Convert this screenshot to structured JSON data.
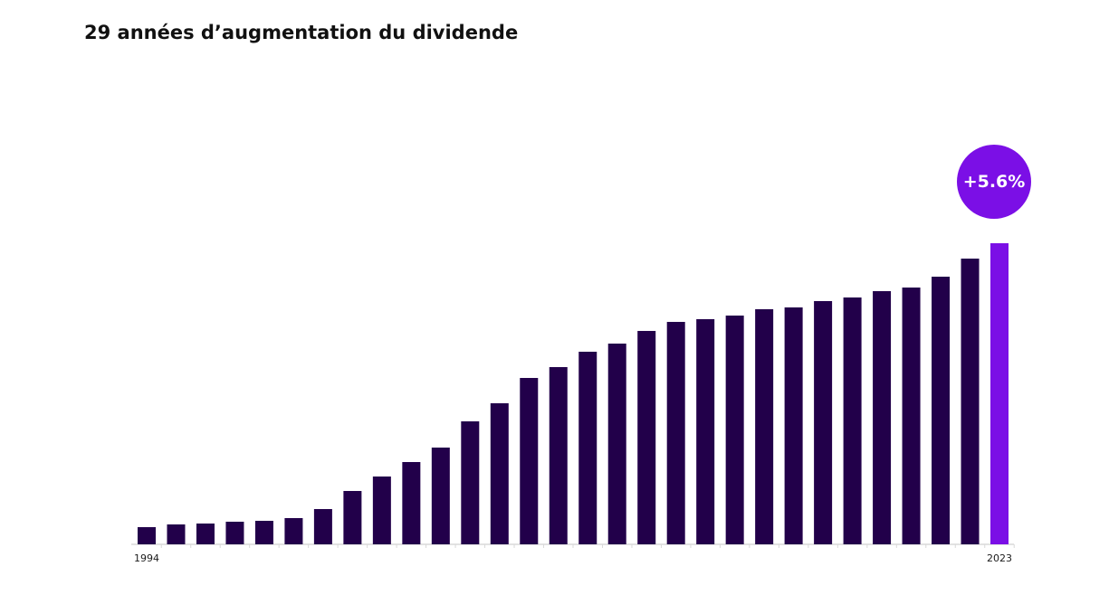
{
  "chart_data": {
    "type": "bar",
    "title": "29 années d’augmentation du dividende",
    "categories": [
      "1994",
      null,
      null,
      null,
      null,
      null,
      null,
      null,
      null,
      null,
      null,
      null,
      null,
      null,
      null,
      null,
      null,
      null,
      null,
      null,
      null,
      null,
      null,
      null,
      null,
      null,
      null,
      null,
      null,
      "2023"
    ],
    "values": [
      19,
      22,
      23,
      25,
      26,
      29,
      39,
      59,
      75,
      91,
      107,
      136,
      156,
      184,
      196,
      213,
      222,
      236,
      246,
      249,
      253,
      260,
      262,
      269,
      273,
      280,
      284,
      296,
      316,
      333
    ],
    "colors": [
      "#22004a",
      "#22004a",
      "#22004a",
      "#22004a",
      "#22004a",
      "#22004a",
      "#22004a",
      "#22004a",
      "#22004a",
      "#22004a",
      "#22004a",
      "#22004a",
      "#22004a",
      "#22004a",
      "#22004a",
      "#22004a",
      "#22004a",
      "#22004a",
      "#22004a",
      "#22004a",
      "#22004a",
      "#22004a",
      "#22004a",
      "#22004a",
      "#22004a",
      "#22004a",
      "#22004a",
      "#22004a",
      "#22004a",
      "#7b0fe6"
    ],
    "ylim": [
      0,
      350
    ],
    "annotation": {
      "text": "+5.6%",
      "color": "#7b0fe6"
    }
  }
}
